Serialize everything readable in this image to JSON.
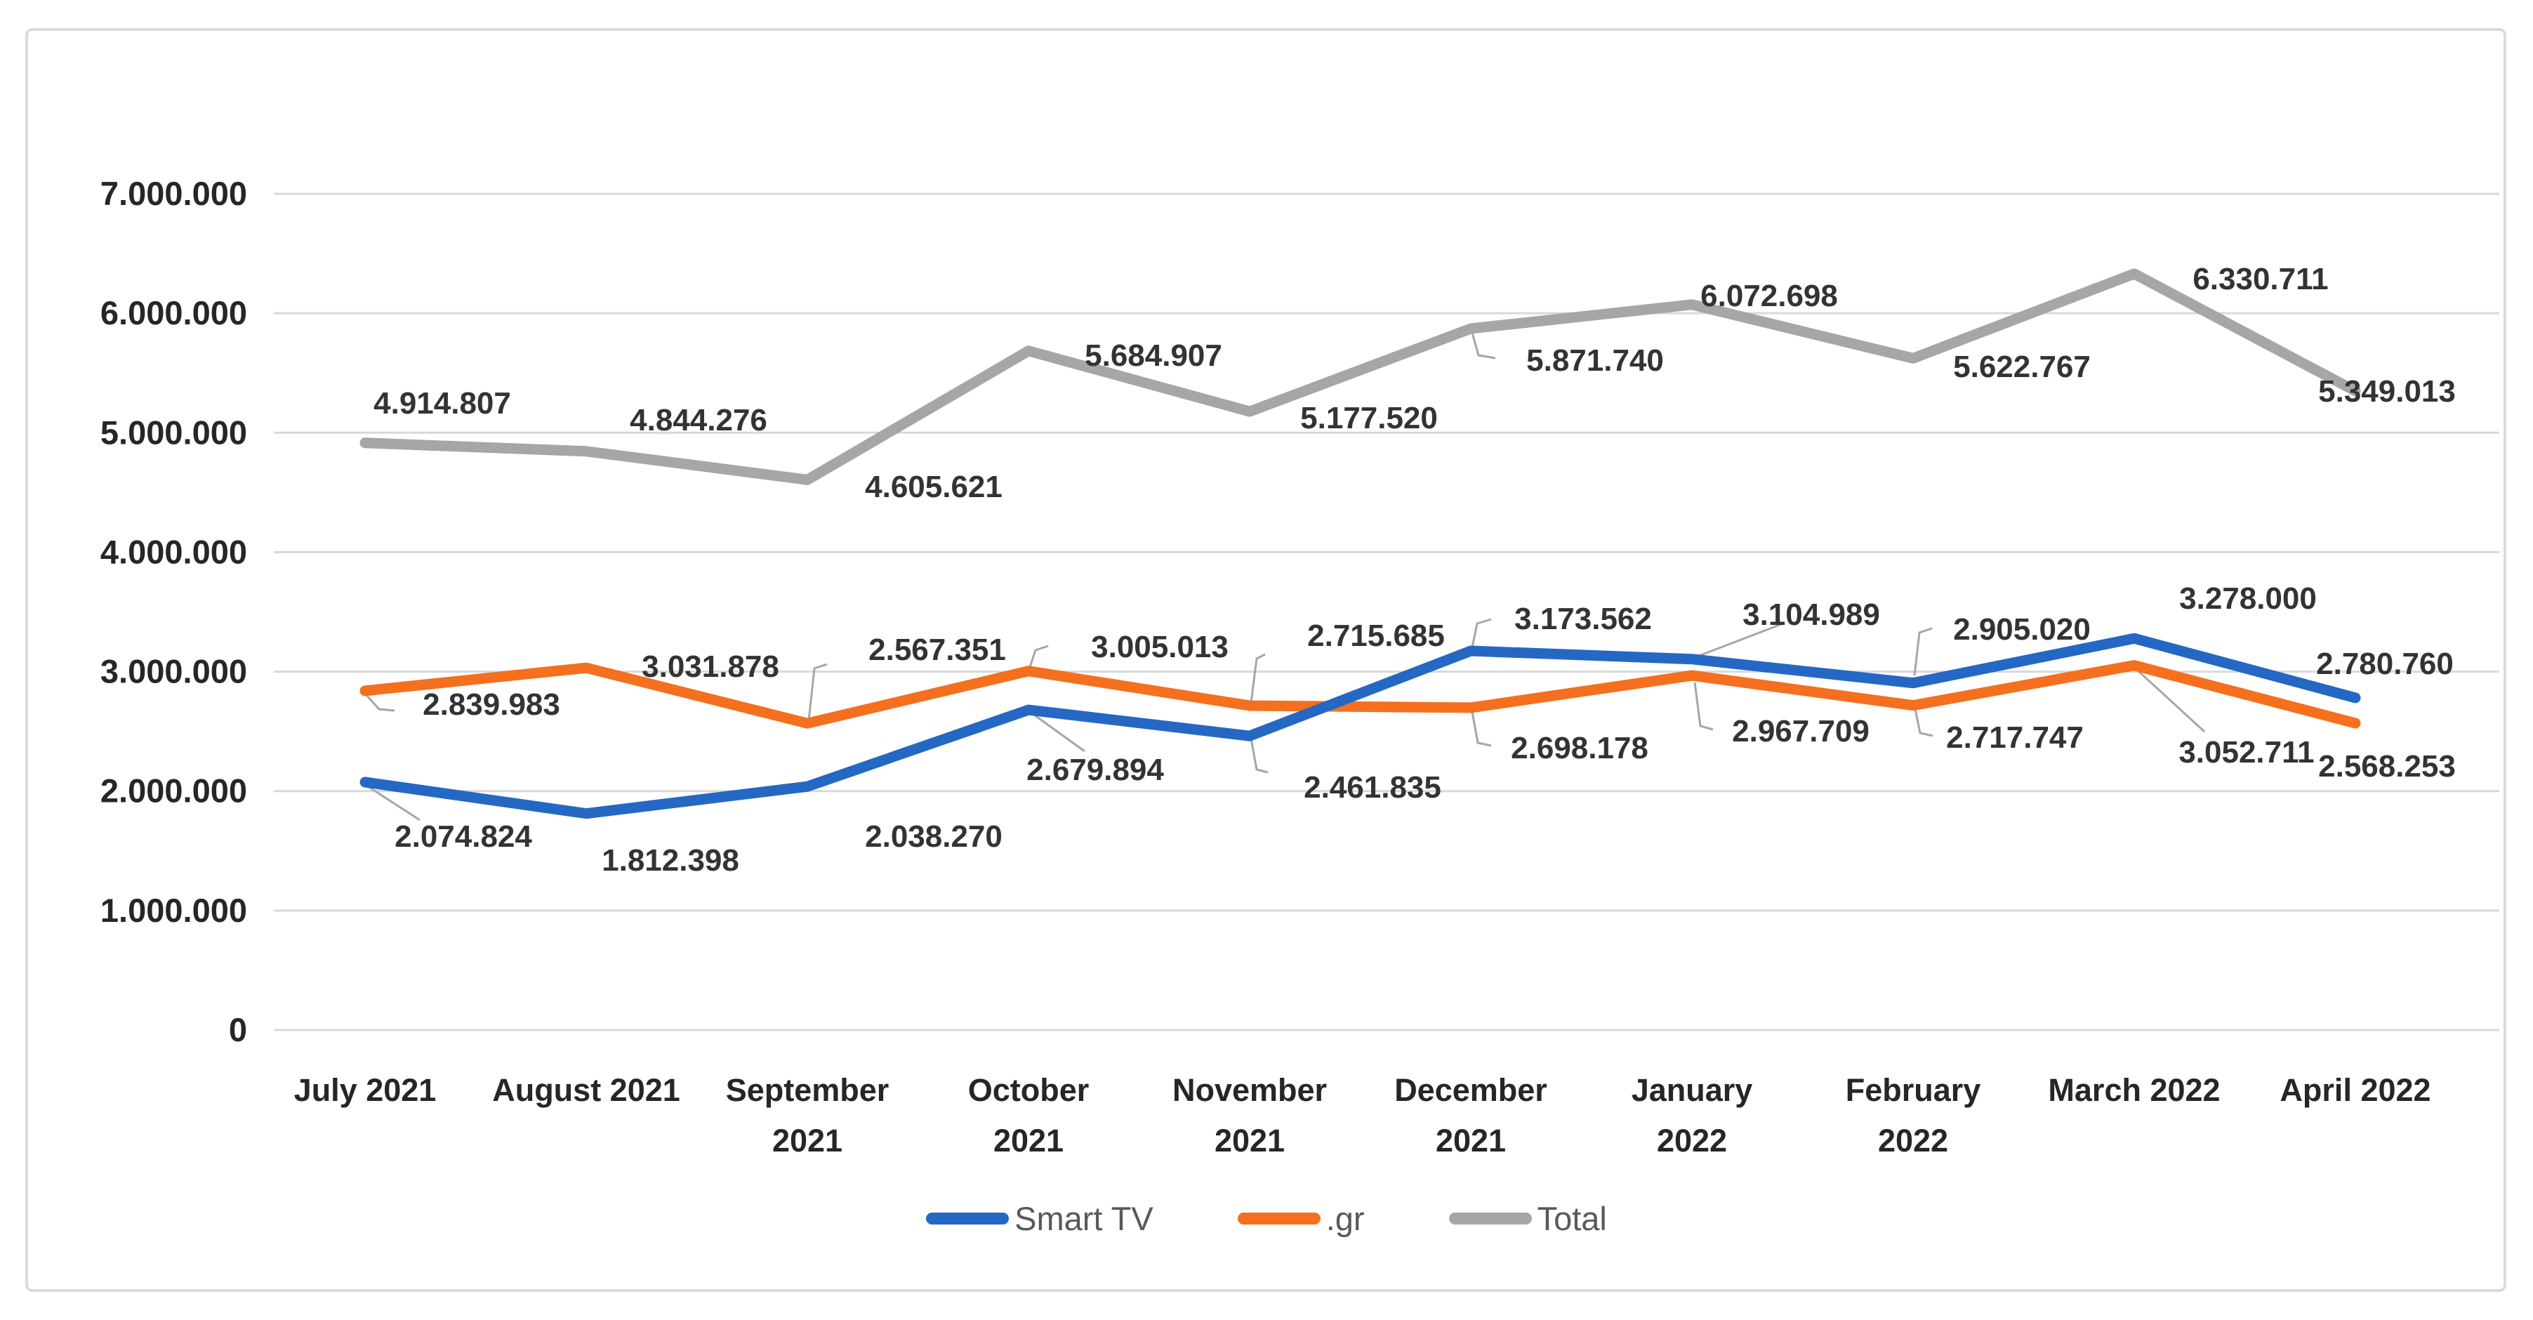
{
  "chart_data": {
    "type": "line",
    "title": "",
    "xlabel": "",
    "ylabel": "",
    "grid": true,
    "legend_position": "bottom",
    "categories": [
      "July 2021",
      "August 2021",
      "September 2021",
      "October 2021",
      "November 2021",
      "December 2021",
      "January 2022",
      "February 2022",
      "March 2022",
      "April 2022"
    ],
    "category_label_lines": [
      [
        "July 2021"
      ],
      [
        "August 2021"
      ],
      [
        "September",
        "2021"
      ],
      [
        "October",
        "2021"
      ],
      [
        "November",
        "2021"
      ],
      [
        "December",
        "2021"
      ],
      [
        "January",
        "2022"
      ],
      [
        "February",
        "2022"
      ],
      [
        "March 2022"
      ],
      [
        "April 2022"
      ]
    ],
    "y_axis": {
      "min": 0,
      "max": 7000000,
      "step": 1000000,
      "tick_labels": [
        "0",
        "1.000.000",
        "2.000.000",
        "3.000.000",
        "4.000.000",
        "5.000.000",
        "6.000.000",
        "7.000.000"
      ]
    },
    "series": [
      {
        "name": "Smart TV",
        "color": "#2468c4",
        "values": [
          2074824,
          1812398,
          2038270,
          2679894,
          2461835,
          3173562,
          3104989,
          2905020,
          3278000,
          2780760
        ],
        "labels": [
          "2.074.824",
          "1.812.398",
          "2.038.270",
          "2.679.894",
          "2.461.835",
          "3.173.562",
          "3.104.989",
          "2.905.020",
          "3.278.000",
          "2.780.760"
        ]
      },
      {
        "name": ".gr",
        "color": "#f4701e",
        "values": [
          2839983,
          3031878,
          2567351,
          3005013,
          2715685,
          2698178,
          2967709,
          2717747,
          3052711,
          2568253
        ],
        "labels": [
          "2.839.983",
          "3.031.878",
          "2.567.351",
          "3.005.013",
          "2.715.685",
          "2.698.178",
          "2.967.709",
          "2.717.747",
          "3.052.711",
          "2.568.253"
        ]
      },
      {
        "name": "Total",
        "color": "#a6a6a6",
        "values": [
          4914807,
          4844276,
          4605621,
          5684907,
          5177520,
          5871740,
          6072698,
          5622767,
          6330711,
          5349013
        ],
        "labels": [
          "4.914.807",
          "4.844.276",
          "4.605.621",
          "5.684.907",
          "5.177.520",
          "5.871.740",
          "6.072.698",
          "5.622.767",
          "6.330.711",
          "5.349.013"
        ]
      }
    ],
    "colors": {
      "gridline": "#d9d9d9",
      "leader_line": "#a6a6a6",
      "data_label": "#333333",
      "axis_label": "#262626",
      "legend_text": "#595959",
      "frame_border": "#dbdbdb",
      "background": "#ffffff"
    }
  }
}
